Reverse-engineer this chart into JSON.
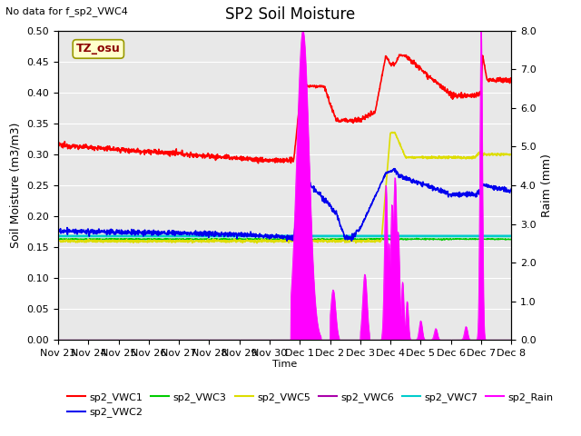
{
  "title": "SP2 Soil Moisture",
  "subtitle": "No data for f_sp2_VWC4",
  "ylabel_left": "Soil Moisture (m3/m3)",
  "ylabel_right": "Raim (mm)",
  "xlabel": "Time",
  "tz_label": "TZ_osu",
  "ylim_left": [
    0.0,
    0.5
  ],
  "ylim_right": [
    0.0,
    8.0
  ],
  "yticks_left": [
    0.0,
    0.05,
    0.1,
    0.15,
    0.2,
    0.25,
    0.3,
    0.35,
    0.4,
    0.45,
    0.5
  ],
  "yticks_right": [
    0.0,
    1.0,
    2.0,
    3.0,
    4.0,
    5.0,
    6.0,
    7.0,
    8.0
  ],
  "xtick_labels": [
    "Nov 23",
    "Nov 24",
    "Nov 25",
    "Nov 26",
    "Nov 27",
    "Nov 28",
    "Nov 29",
    "Nov 30",
    "Dec 1",
    "Dec 2",
    "Dec 3",
    "Dec 4",
    "Dec 5",
    "Dec 6",
    "Dec 7",
    "Dec 8"
  ],
  "colors": {
    "sp2_VWC1": "#ff0000",
    "sp2_VWC2": "#0000ee",
    "sp2_VWC3": "#00cc00",
    "sp2_VWC5": "#dddd00",
    "sp2_VWC6": "#aa00aa",
    "sp2_VWC7": "#00cccc",
    "sp2_Rain": "#ff00ff"
  },
  "background_color": "#e8e8e8",
  "grid_color": "#ffffff",
  "fig_width": 6.4,
  "fig_height": 4.8,
  "dpi": 100
}
